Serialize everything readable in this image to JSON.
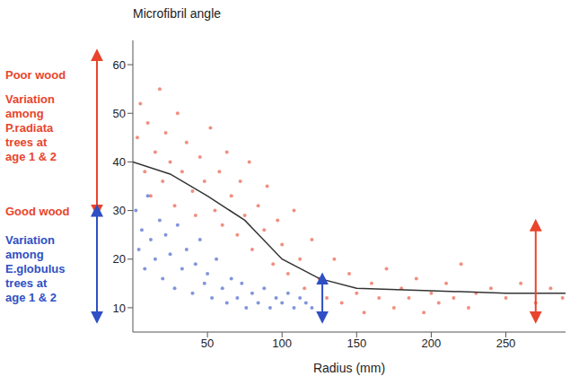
{
  "chart_data": {
    "type": "scatter",
    "ylabel": "Microfibril angle",
    "xlabel": "Radius (mm)",
    "xlim": [
      0,
      290
    ],
    "xticks": [
      50,
      100,
      150,
      200,
      250
    ],
    "ylim": [
      5,
      65
    ],
    "yticks": [
      10,
      20,
      30,
      40,
      50,
      60
    ],
    "series": [
      {
        "color": "#e8452c",
        "marker": "circle",
        "x": [
          3,
          5,
          8,
          10,
          12,
          15,
          18,
          20,
          22,
          25,
          28,
          30,
          33,
          36,
          40,
          42,
          45,
          48,
          52,
          55,
          58,
          60,
          63,
          66,
          70,
          72,
          75,
          78,
          80,
          84,
          88,
          90,
          94,
          97,
          100,
          104,
          108,
          112,
          115,
          120,
          125,
          130,
          135,
          140,
          145,
          150,
          155,
          160,
          165,
          170,
          175,
          180,
          185,
          190,
          195,
          200,
          205,
          210,
          215,
          220,
          225,
          230,
          240,
          250,
          260,
          270,
          280,
          288
        ],
        "values": [
          45,
          52,
          38,
          48,
          33,
          42,
          55,
          36,
          46,
          40,
          31,
          50,
          38,
          44,
          34,
          29,
          41,
          36,
          47,
          30,
          38,
          27,
          42,
          33,
          25,
          36,
          29,
          40,
          22,
          31,
          26,
          35,
          19,
          28,
          23,
          17,
          30,
          20,
          14,
          24,
          16,
          12,
          20,
          11,
          17,
          13,
          9,
          15,
          12,
          18,
          10,
          14,
          12,
          16,
          9,
          13,
          11,
          15,
          12,
          19,
          10,
          13,
          14,
          12,
          15,
          11,
          14,
          12
        ]
      },
      {
        "color": "#2f4fc4",
        "marker": "circle",
        "x": [
          2,
          4,
          6,
          8,
          10,
          12,
          15,
          18,
          20,
          22,
          25,
          28,
          30,
          33,
          36,
          40,
          42,
          45,
          48,
          50,
          53,
          56,
          60,
          63,
          66,
          70,
          73,
          76,
          80,
          84,
          88,
          92,
          96,
          100,
          104,
          108,
          112,
          116,
          120
        ],
        "values": [
          30,
          22,
          26,
          18,
          33,
          24,
          20,
          28,
          16,
          25,
          21,
          14,
          27,
          18,
          22,
          13,
          19,
          24,
          15,
          17,
          12,
          20,
          14,
          11,
          16,
          12,
          15,
          10,
          13,
          11,
          14,
          10,
          12,
          11,
          13,
          10,
          12,
          11,
          10
        ]
      },
      {
        "type": "line",
        "color": "#333333",
        "marker": "none",
        "line_style": "solid",
        "x": [
          0,
          25,
          50,
          75,
          100,
          125,
          150,
          200,
          250,
          290
        ],
        "values": [
          40,
          37.5,
          33,
          28,
          20,
          16,
          14,
          13.5,
          13,
          13
        ]
      }
    ],
    "annotations": [
      {
        "text": "Poor wood",
        "y": 58,
        "color": "#e8452c"
      },
      {
        "text": "Variation among P.radiata trees at age 1 & 2",
        "y": 53,
        "color": "#e8452c"
      },
      {
        "text": "Good wood",
        "y": 30,
        "color": "#e8452c"
      },
      {
        "text": "Variation among E.globulus trees at age 1 & 2",
        "y": 24,
        "color": "#2f4fc4"
      }
    ],
    "arrows": [
      {
        "y_range": [
          30,
          62
        ],
        "color": "#e8452c"
      },
      {
        "y_range": [
          8,
          30
        ],
        "color": "#2f4fc4"
      },
      {
        "x": 127,
        "y_range": [
          8,
          16
        ],
        "color": "#2f4fc4"
      },
      {
        "x": 270,
        "y_range": [
          8,
          27
        ],
        "color": "#e8452c"
      }
    ]
  }
}
